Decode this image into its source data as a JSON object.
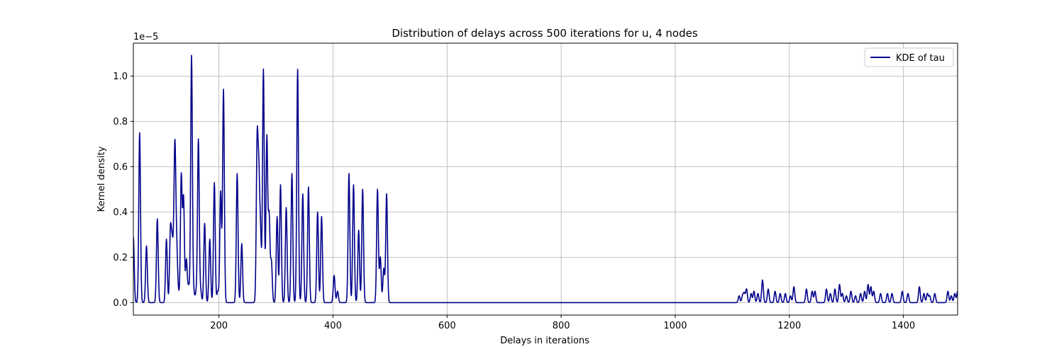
{
  "chart_data": {
    "type": "line",
    "title": "Distribution of delays across 500 iterations for u, 4 nodes",
    "xlabel": "Delays in iterations",
    "ylabel": "Kernel density",
    "y_offset_label": "1e−5",
    "xlim": [
      50,
      1495
    ],
    "ylim": [
      -0.055,
      1.145
    ],
    "y_scale_factor": 1e-05,
    "x_ticks": [
      200,
      400,
      600,
      800,
      1000,
      1200,
      1400
    ],
    "x_tick_labels": [
      "200",
      "400",
      "600",
      "800",
      "1000",
      "1200",
      "1400"
    ],
    "y_ticks": [
      0.0,
      0.2,
      0.4,
      0.6,
      0.8,
      1.0
    ],
    "y_tick_labels": [
      "0.0",
      "0.2",
      "0.4",
      "0.6",
      "0.8",
      "1.0"
    ],
    "grid": true,
    "legend_position": "top-right",
    "line_color": "#00008b",
    "series": [
      {
        "name": "KDE of tau",
        "peaks": [
          [
            50,
            0.29
          ],
          [
            61,
            0.75
          ],
          [
            73,
            0.25
          ],
          [
            92,
            0.37
          ],
          [
            108,
            0.28
          ],
          [
            115,
            0.31
          ],
          [
            118,
            0.24
          ],
          [
            121,
            0.17
          ],
          [
            123,
            0.62
          ],
          [
            126,
            0.22
          ],
          [
            129,
            0.04
          ],
          [
            134,
            0.56
          ],
          [
            138,
            0.46
          ],
          [
            143,
            0.19
          ],
          [
            147,
            0.07
          ],
          [
            152,
            1.09
          ],
          [
            156,
            0.04
          ],
          [
            160,
            0.04
          ],
          [
            164,
            0.72
          ],
          [
            168,
            0.05
          ],
          [
            175,
            0.35
          ],
          [
            184,
            0.28
          ],
          [
            192,
            0.53
          ],
          [
            198,
            0.05
          ],
          [
            203,
            0.49
          ],
          [
            208,
            0.94
          ],
          [
            232,
            0.57
          ],
          [
            240,
            0.26
          ],
          [
            267,
            0.69
          ],
          [
            270,
            0.51
          ],
          [
            273,
            0.28
          ],
          [
            278,
            1.03
          ],
          [
            284,
            0.73
          ],
          [
            288,
            0.38
          ],
          [
            292,
            0.18
          ],
          [
            302,
            0.38
          ],
          [
            308,
            0.52
          ],
          [
            318,
            0.42
          ],
          [
            328,
            0.57
          ],
          [
            338,
            1.03
          ],
          [
            347,
            0.48
          ],
          [
            357,
            0.51
          ],
          [
            373,
            0.4
          ],
          [
            380,
            0.38
          ],
          [
            402,
            0.12
          ],
          [
            408,
            0.05
          ],
          [
            428,
            0.57
          ],
          [
            436,
            0.52
          ],
          [
            445,
            0.32
          ],
          [
            452,
            0.5
          ],
          [
            478,
            0.5
          ],
          [
            483,
            0.2
          ],
          [
            489,
            0.15
          ],
          [
            494,
            0.48
          ],
          [
            1112,
            0.03
          ],
          [
            1118,
            0.03
          ],
          [
            1121,
            0.04
          ],
          [
            1125,
            0.06
          ],
          [
            1133,
            0.04
          ],
          [
            1138,
            0.05
          ],
          [
            1145,
            0.04
          ],
          [
            1153,
            0.1
          ],
          [
            1163,
            0.06
          ],
          [
            1175,
            0.05
          ],
          [
            1184,
            0.04
          ],
          [
            1193,
            0.04
          ],
          [
            1202,
            0.03
          ],
          [
            1208,
            0.07
          ],
          [
            1230,
            0.06
          ],
          [
            1240,
            0.05
          ],
          [
            1245,
            0.05
          ],
          [
            1265,
            0.06
          ],
          [
            1272,
            0.04
          ],
          [
            1280,
            0.06
          ],
          [
            1288,
            0.08
          ],
          [
            1293,
            0.04
          ],
          [
            1300,
            0.03
          ],
          [
            1308,
            0.05
          ],
          [
            1316,
            0.03
          ],
          [
            1325,
            0.04
          ],
          [
            1332,
            0.05
          ],
          [
            1338,
            0.08
          ],
          [
            1343,
            0.07
          ],
          [
            1348,
            0.05
          ],
          [
            1360,
            0.04
          ],
          [
            1372,
            0.04
          ],
          [
            1380,
            0.04
          ],
          [
            1398,
            0.05
          ],
          [
            1408,
            0.04
          ],
          [
            1428,
            0.07
          ],
          [
            1436,
            0.04
          ],
          [
            1442,
            0.04
          ],
          [
            1446,
            0.03
          ],
          [
            1455,
            0.04
          ],
          [
            1478,
            0.05
          ],
          [
            1484,
            0.03
          ],
          [
            1490,
            0.04
          ],
          [
            1495,
            0.05
          ]
        ]
      }
    ]
  }
}
